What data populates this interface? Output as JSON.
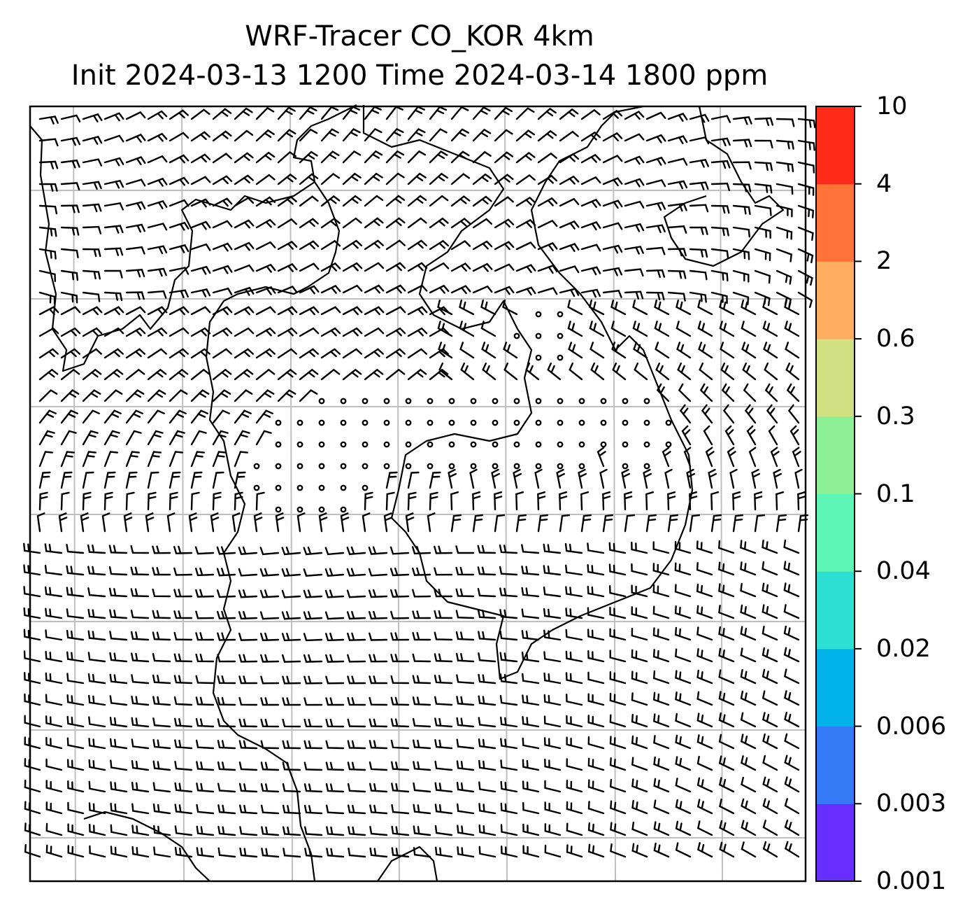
{
  "title_line1": "WRF-Tracer CO_KOR 4km",
  "title_line2": "Init 2024-03-13 1200 Time 2024-03-14 1800 ppm",
  "colorbar": {
    "levels": [
      "0.001",
      "0.003",
      "0.006",
      "0.02",
      "0.04",
      "0.1",
      "0.3",
      "0.6",
      "2",
      "4",
      "10"
    ],
    "colors": [
      "#6a2dff",
      "#3479f5",
      "#00b1ea",
      "#2ddfd2",
      "#5ef6b6",
      "#8ef095",
      "#d1e083",
      "#ffad5e",
      "#ff7338",
      "#ff2a18"
    ]
  },
  "map": {
    "wind_barbs": true,
    "coastlines": true,
    "gridlines": true,
    "grid_color": "#bfbfbf"
  }
}
